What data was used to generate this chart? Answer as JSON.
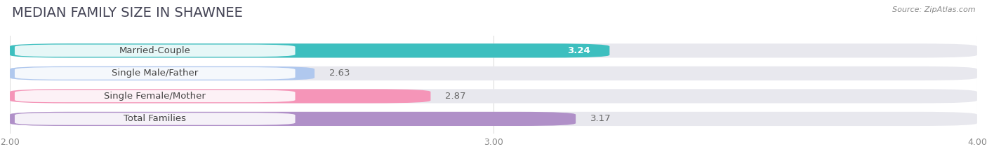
{
  "title": "MEDIAN FAMILY SIZE IN SHAWNEE",
  "source": "Source: ZipAtlas.com",
  "categories": [
    "Married-Couple",
    "Single Male/Father",
    "Single Female/Mother",
    "Total Families"
  ],
  "values": [
    3.24,
    2.63,
    2.87,
    3.17
  ],
  "bar_colors": [
    "#3dbfbf",
    "#b0c8ee",
    "#f595b8",
    "#b090c8"
  ],
  "bar_bg_color": "#e8e8ee",
  "xmin": 2.0,
  "xmax": 4.0,
  "xticks": [
    2.0,
    3.0,
    4.0
  ],
  "xtick_labels": [
    "2.00",
    "3.00",
    "4.00"
  ],
  "title_fontsize": 14,
  "label_fontsize": 9.5,
  "value_fontsize": 9.5,
  "bar_height": 0.62,
  "background_color": "#ffffff",
  "value_color_inside": [
    "#ffffff",
    "#555555",
    "#555555",
    "#555555"
  ]
}
